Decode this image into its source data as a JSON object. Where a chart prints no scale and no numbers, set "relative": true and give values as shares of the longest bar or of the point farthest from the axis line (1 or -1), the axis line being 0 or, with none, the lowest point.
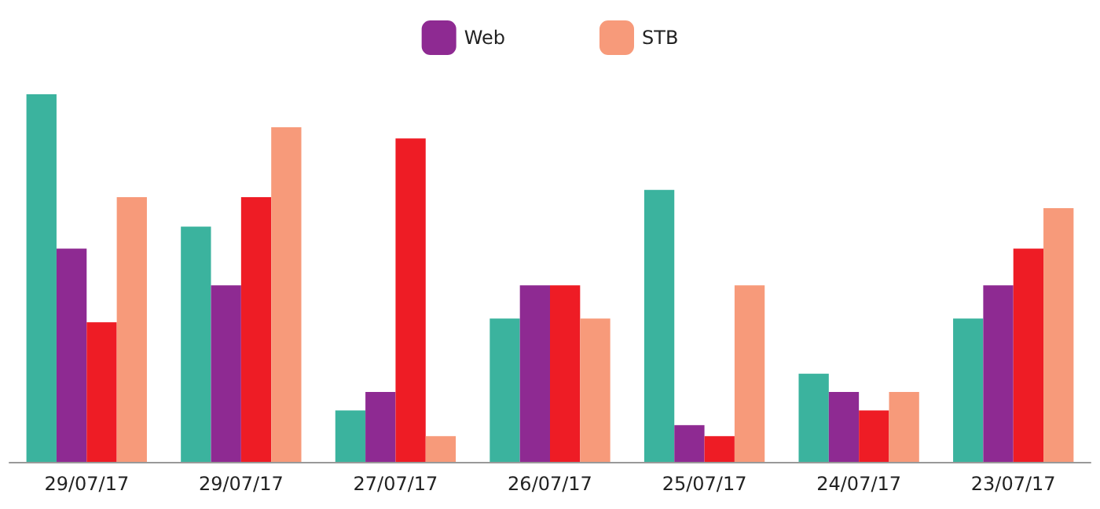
{
  "chart_data": {
    "type": "bar",
    "relative": true,
    "legend": "top",
    "grid": false,
    "categories": [
      "29/07/17",
      "29/07/17",
      "27/07/17",
      "26/07/17",
      "25/07/17",
      "24/07/17",
      "23/07/17"
    ],
    "series": [
      {
        "color": "#3bb39e",
        "values": [
          1,
          0.64,
          0.14,
          0.39,
          0.74,
          0.24,
          0.39
        ]
      },
      {
        "name": "Web",
        "color": "#8e2a92",
        "values": [
          0.58,
          0.48,
          0.19,
          0.48,
          0.1,
          0.19,
          0.48
        ]
      },
      {
        "color": "#ee1c25",
        "values": [
          0.38,
          0.72,
          0.88,
          0.48,
          0.07,
          0.14,
          0.58
        ]
      },
      {
        "name": "STB",
        "color": "#f79a7a",
        "values": [
          0.72,
          0.91,
          0.07,
          0.39,
          0.48,
          0.19,
          0.69
        ]
      }
    ]
  }
}
